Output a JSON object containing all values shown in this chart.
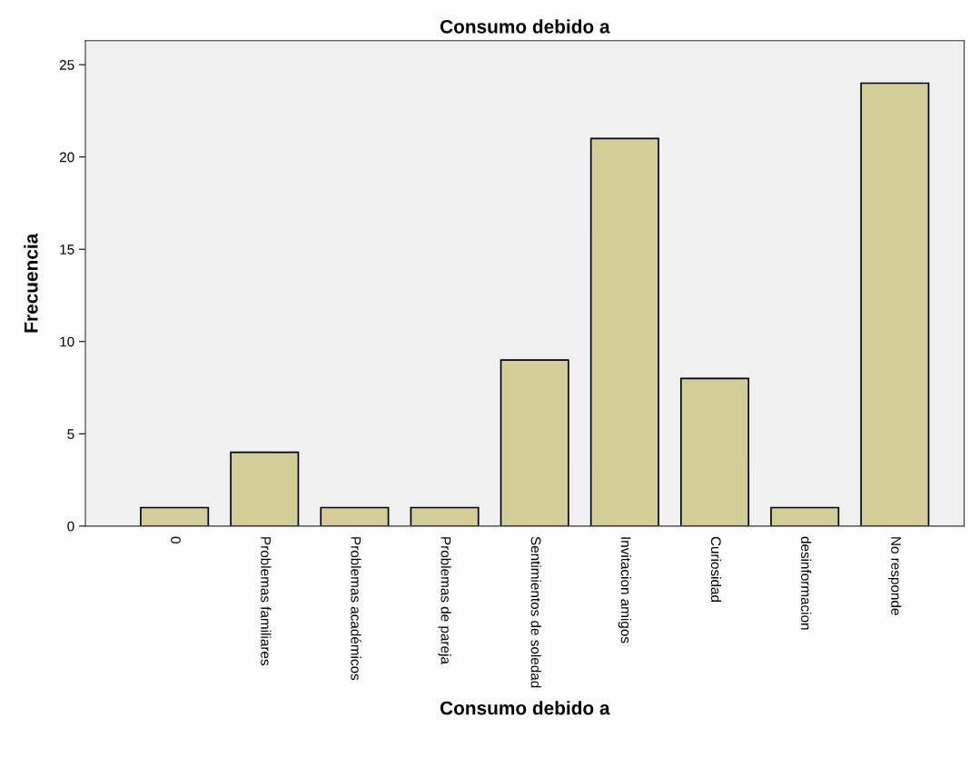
{
  "chart_data": {
    "type": "bar",
    "title": "Consumo debido a",
    "xlabel": "Consumo debido a",
    "ylabel": "Frecuencia",
    "categories": [
      "0",
      "Problemas familiares",
      "Problemas académicos",
      "Problemas de pareja",
      "Sentimientos de soledad",
      "Invitacion amigos",
      "Curiosidad",
      "desinformacion",
      "No responde"
    ],
    "values": [
      1,
      4,
      1,
      1,
      9,
      21,
      8,
      1,
      24
    ],
    "color": "#d3ce97",
    "ylim": [
      0,
      26.3
    ],
    "yticks": [
      0,
      5,
      10,
      15,
      20,
      25
    ],
    "grid": false,
    "legend": false
  }
}
